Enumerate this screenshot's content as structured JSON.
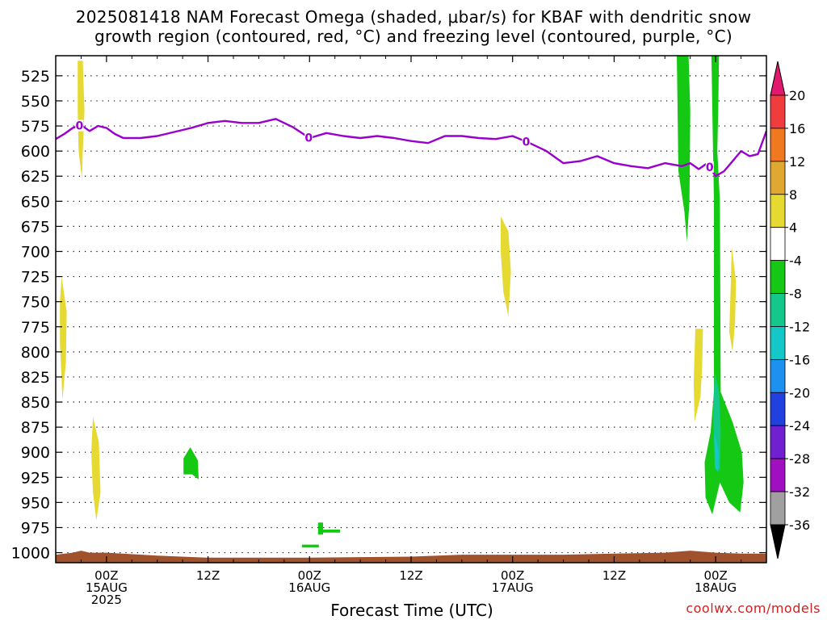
{
  "header": {
    "title_line1": "2025081418 NAM Forecast Omega (shaded, μbar/s) for KBAF with dendritic snow",
    "title_line2": "growth region (contoured, red, °C) and freezing level (contoured, purple, °C)"
  },
  "footer": {
    "credit": "coolwx.com/models"
  },
  "chart_data": {
    "type": "heatmap",
    "xlabel": "Forecast Time (UTC)",
    "ylabel": "",
    "x_range_hours": [
      -6,
      78
    ],
    "x_ticks": [
      {
        "hour": 0,
        "labels": [
          "00Z",
          "15AUG",
          "2025"
        ]
      },
      {
        "hour": 12,
        "labels": [
          "12Z"
        ]
      },
      {
        "hour": 24,
        "labels": [
          "00Z",
          "16AUG"
        ]
      },
      {
        "hour": 36,
        "labels": [
          "12Z"
        ]
      },
      {
        "hour": 48,
        "labels": [
          "00Z",
          "17AUG"
        ]
      },
      {
        "hour": 60,
        "labels": [
          "12Z"
        ]
      },
      {
        "hour": 72,
        "labels": [
          "00Z",
          "18AUG"
        ]
      }
    ],
    "y_range_hpa": [
      1010,
      505
    ],
    "y_ticks": [
      525,
      550,
      575,
      600,
      625,
      650,
      675,
      700,
      725,
      750,
      775,
      800,
      825,
      850,
      875,
      900,
      925,
      950,
      975,
      1000
    ],
    "grid": "dotted-horizontal",
    "colorbar": {
      "ticks": [
        20,
        16,
        12,
        8,
        4,
        -4,
        -8,
        -12,
        -16,
        -20,
        -24,
        -28,
        -32,
        -36
      ],
      "bands": [
        {
          "from": 20,
          "to": 24,
          "color": "#e0186e"
        },
        {
          "from": 16,
          "to": 20,
          "color": "#f03c3c"
        },
        {
          "from": 12,
          "to": 16,
          "color": "#f07820"
        },
        {
          "from": 8,
          "to": 12,
          "color": "#e0a830"
        },
        {
          "from": 4,
          "to": 8,
          "color": "#e6da32"
        },
        {
          "from": -4,
          "to": 4,
          "color": "#ffffff"
        },
        {
          "from": -8,
          "to": -4,
          "color": "#14c814"
        },
        {
          "from": -12,
          "to": -8,
          "color": "#14c88c"
        },
        {
          "from": -16,
          "to": -12,
          "color": "#14c8c8"
        },
        {
          "from": -20,
          "to": -16,
          "color": "#1e90f0"
        },
        {
          "from": -24,
          "to": -20,
          "color": "#2040e0"
        },
        {
          "from": -28,
          "to": -24,
          "color": "#7020d0"
        },
        {
          "from": -32,
          "to": -28,
          "color": "#a010c0"
        },
        {
          "from": -36,
          "to": -32,
          "color": "#a0a0a0"
        }
      ],
      "top_arrow_color": "#e0186e",
      "bottom_arrow_color": "#000000"
    },
    "freezing_level": {
      "color": "#9900cc",
      "label": "0",
      "label_hours": [
        -3.2,
        23.9,
        49.6,
        71.3
      ],
      "hours": [
        -6,
        -5,
        -4,
        -3,
        -2,
        -1,
        0,
        1,
        2,
        4,
        6,
        8,
        10,
        12,
        14,
        16,
        18,
        20,
        22,
        24,
        26,
        28,
        30,
        32,
        34,
        36,
        38,
        40,
        42,
        44,
        46,
        48,
        50,
        52,
        54,
        56,
        58,
        60,
        62,
        64,
        66,
        68,
        69,
        70,
        71,
        72,
        73,
        74,
        75,
        76,
        77,
        78
      ],
      "pressure": [
        588,
        583,
        577,
        574,
        580,
        575,
        577,
        583,
        587,
        587,
        585,
        581,
        577,
        572,
        570,
        572,
        572,
        568,
        576,
        587,
        582,
        585,
        587,
        585,
        587,
        590,
        592,
        585,
        585,
        587,
        588,
        585,
        592,
        600,
        612,
        610,
        605,
        612,
        615,
        617,
        612,
        615,
        612,
        618,
        612,
        625,
        620,
        610,
        600,
        605,
        603,
        580
      ]
    },
    "dendritic_growth_region": null,
    "terrain": {
      "color": "#a0522d",
      "hours": [
        -6,
        -4,
        -3,
        -2,
        0,
        6,
        12,
        24,
        36,
        42,
        48,
        54,
        60,
        66,
        69,
        72,
        75,
        78
      ],
      "pressure": [
        1002,
        1000,
        998,
        1000,
        1000,
        1003,
        1005,
        1005,
        1004,
        1002,
        1002,
        1002,
        1001,
        1000,
        998,
        1000,
        1001,
        1001
      ]
    },
    "shaded_regions": [
      {
        "value_band": "4 to 8",
        "color": "#e6da32",
        "points": [
          [
            -3.4,
            510
          ],
          [
            -2.8,
            510
          ],
          [
            -2.6,
            560
          ],
          [
            -2.8,
            600
          ],
          [
            -2.9,
            628
          ],
          [
            -3.3,
            600
          ],
          [
            -3.4,
            560
          ]
        ]
      },
      {
        "value_band": "4 to 8",
        "color": "#e6da32",
        "points": [
          [
            -5.3,
            725
          ],
          [
            -4.7,
            760
          ],
          [
            -4.8,
            810
          ],
          [
            -5.2,
            848
          ],
          [
            -5.5,
            790
          ],
          [
            -5.5,
            750
          ]
        ]
      },
      {
        "value_band": "4 to 8",
        "color": "#e6da32",
        "points": [
          [
            -1.6,
            865
          ],
          [
            -0.9,
            890
          ],
          [
            -0.7,
            940
          ],
          [
            -1.2,
            968
          ],
          [
            -1.6,
            940
          ],
          [
            -1.8,
            900
          ]
        ]
      },
      {
        "value_band": "4 to 8",
        "color": "#e6da32",
        "points": [
          [
            46.6,
            665
          ],
          [
            47.5,
            680
          ],
          [
            47.8,
            720
          ],
          [
            47.5,
            765
          ],
          [
            46.9,
            740
          ],
          [
            46.6,
            700
          ]
        ]
      },
      {
        "value_band": "4 to 8",
        "color": "#e6da32",
        "points": [
          [
            69.6,
            777
          ],
          [
            70.5,
            777
          ],
          [
            70.4,
            815
          ],
          [
            70.2,
            845
          ],
          [
            69.5,
            870
          ],
          [
            69.4,
            830
          ]
        ]
      },
      {
        "value_band": "4 to 8",
        "color": "#e6da32",
        "points": [
          [
            73.9,
            695
          ],
          [
            74.4,
            730
          ],
          [
            74.3,
            770
          ],
          [
            74.0,
            800
          ],
          [
            73.6,
            780
          ],
          [
            73.8,
            730
          ]
        ]
      },
      {
        "value_band": "-8 to -4",
        "color": "#14c814",
        "points": [
          [
            67.4,
            505
          ],
          [
            68.8,
            505
          ],
          [
            69.0,
            560
          ],
          [
            68.9,
            650
          ],
          [
            68.6,
            690
          ],
          [
            68.3,
            660
          ],
          [
            67.6,
            620
          ],
          [
            67.5,
            560
          ]
        ]
      },
      {
        "value_band": "-8 to -4",
        "color": "#14c814",
        "points": [
          [
            71.5,
            505
          ],
          [
            72.4,
            505
          ],
          [
            72.3,
            560
          ],
          [
            72.2,
            600
          ],
          [
            72.5,
            650
          ],
          [
            72.6,
            840
          ],
          [
            74.0,
            870
          ],
          [
            75.1,
            900
          ],
          [
            75.3,
            930
          ],
          [
            74.9,
            960
          ],
          [
            73.6,
            950
          ],
          [
            72.5,
            930
          ],
          [
            71.6,
            962
          ],
          [
            70.8,
            945
          ],
          [
            70.7,
            910
          ],
          [
            71.4,
            880
          ],
          [
            71.8,
            840
          ],
          [
            71.8,
            650
          ],
          [
            71.6,
            560
          ]
        ]
      },
      {
        "value_band": "-8 to -4",
        "color": "#14c814",
        "points": [
          [
            9.1,
            906
          ],
          [
            9.9,
            895
          ],
          [
            10.8,
            908
          ],
          [
            10.9,
            927
          ],
          [
            10.1,
            922
          ],
          [
            9.1,
            922
          ]
        ]
      },
      {
        "value_band": "-8 to -4",
        "color": "#14c814",
        "points": [
          [
            23.1,
            992
          ],
          [
            25.1,
            992
          ],
          [
            25.1,
            995
          ],
          [
            23.1,
            995
          ]
        ]
      },
      {
        "value_band": "-8 to -4",
        "color": "#14c814",
        "points": [
          [
            25.4,
            977
          ],
          [
            27.6,
            977
          ],
          [
            27.6,
            980
          ],
          [
            25.4,
            980
          ]
        ]
      },
      {
        "value_band": "-8 to -4",
        "color": "#14c814",
        "points": [
          [
            25.0,
            970
          ],
          [
            25.6,
            970
          ],
          [
            25.6,
            982
          ],
          [
            25.0,
            982
          ]
        ]
      },
      {
        "value_band": "-12 to -8",
        "color": "#14c88c",
        "points": [
          [
            71.9,
            820
          ],
          [
            72.4,
            840
          ],
          [
            72.6,
            880
          ],
          [
            72.5,
            920
          ],
          [
            71.9,
            905
          ],
          [
            71.7,
            860
          ]
        ]
      },
      {
        "value_band": "-16 to -12",
        "color": "#14c8c8",
        "points": [
          [
            71.8,
            880
          ],
          [
            72.4,
            900
          ],
          [
            72.3,
            920
          ],
          [
            71.9,
            915
          ]
        ]
      }
    ]
  }
}
